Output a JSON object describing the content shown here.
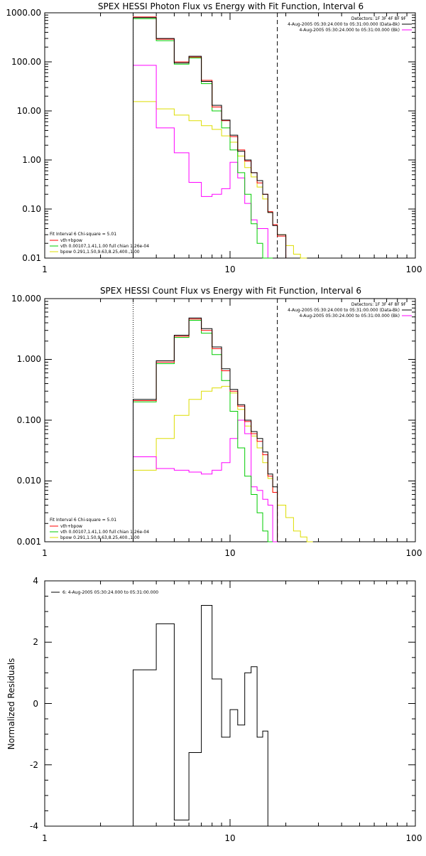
{
  "colors": {
    "data": "#000000",
    "total": "#ff0000",
    "vth": "#00cc00",
    "bpow": "#dddd00",
    "background": "#ff00ff",
    "axes": "#000000"
  },
  "chart_data": [
    {
      "id": "photon",
      "type": "line",
      "step": true,
      "title": "SPEX HESSI Photon Flux vs Energy with Fit Function, Interval 6",
      "xlabel": "",
      "ylabel": "",
      "xscale": "log",
      "yscale": "log",
      "xlim": [
        1,
        100
      ],
      "ylim": [
        0.01,
        1000
      ],
      "xtick_labels": [
        "1",
        "10",
        "100"
      ],
      "ytick_labels": [
        "1000.00",
        "100.00",
        "10.00",
        "1.00",
        "0.10",
        "0.01"
      ],
      "grid": false,
      "energy_range_markers": [
        3,
        18
      ],
      "bin_edges": [
        3,
        4,
        5,
        6,
        7,
        8,
        9,
        10,
        11,
        12,
        13,
        14,
        15,
        16,
        17,
        18,
        20,
        22,
        24,
        26
      ],
      "legend_topright": [
        "Detectors: 1F 3F 4F 8F 9F",
        "4-Aug-2005 05:30:24.000 to 05:31:00.000 (Data-Bk)",
        "4-Aug-2005 05:30:24.000 to 05:31:00.000 (Bk)"
      ],
      "legend_bottomleft": [
        "Fit Interval  6    Chi-square = 5.01",
        "vth+bpow",
        "vth 0.00107,1.41,1.00  full chian 1.26e-04",
        "bpow 0.291,1.50,9.63,8.25,400.,1.00"
      ],
      "series": [
        {
          "key": "data",
          "values": [
            800,
            300,
            95,
            130,
            40,
            13,
            6.5,
            3.2,
            1.5,
            1.0,
            0.55,
            0.38,
            0.2,
            0.085,
            0.046,
            0.03,
            null,
            null,
            null
          ]
        },
        {
          "key": "total",
          "values": [
            820,
            290,
            100,
            125,
            42,
            12,
            6.3,
            3.0,
            1.6,
            0.95,
            0.55,
            0.34,
            0.2,
            0.088,
            0.048,
            0.028,
            null,
            null,
            null
          ]
        },
        {
          "key": "vth",
          "values": [
            760,
            270,
            90,
            120,
            36,
            10,
            4.5,
            1.6,
            0.55,
            0.2,
            0.05,
            0.02,
            0.01,
            0.005,
            null,
            null,
            null,
            null,
            null
          ]
        },
        {
          "key": "bpow",
          "values": [
            15.5,
            11,
            8.2,
            6.3,
            5,
            4.2,
            3.1,
            2.3,
            1.2,
            0.7,
            0.45,
            0.28,
            0.16,
            0.085,
            0.048,
            0.03,
            0.018,
            0.012,
            0.008
          ]
        },
        {
          "key": "background",
          "values": [
            85,
            4.5,
            1.4,
            0.35,
            0.18,
            0.2,
            0.26,
            0.9,
            0.43,
            0.13,
            0.06,
            0.04,
            0.04,
            0.006,
            null,
            null,
            null,
            null,
            null
          ]
        }
      ]
    },
    {
      "id": "count",
      "type": "line",
      "step": true,
      "title": "SPEX HESSI Count Flux vs Energy with Fit Function, Interval 6",
      "xlabel": "",
      "ylabel": "",
      "xscale": "log",
      "yscale": "log",
      "xlim": [
        1,
        100
      ],
      "ylim": [
        0.001,
        10
      ],
      "xtick_labels": [
        "1",
        "10",
        "100"
      ],
      "ytick_labels": [
        "10.000",
        "1.000",
        "0.100",
        "0.010",
        "0.001"
      ],
      "grid": false,
      "energy_range_markers": [
        3,
        18
      ],
      "bin_edges": [
        3,
        4,
        5,
        6,
        7,
        8,
        9,
        10,
        11,
        12,
        13,
        14,
        15,
        16,
        17,
        18,
        20,
        22,
        24,
        26,
        28
      ],
      "legend_topright": [
        "Detectors: 1F 3F 4F 8F 9F",
        "4-Aug-2005 05:30:24.000 to 05:31:00.000 (Data-Bk)",
        "4-Aug-2005 05:30:24.000 to 05:31:00.000 (Bk)"
      ],
      "legend_bottomleft": [
        "Fit Interval  6    Chi-square = 5.01",
        "vth+bpow",
        "vth 0.00107,1.41,1.00  full chian 1.26e-04",
        "bpow 0.291,1.50,9.63,8.25,400.,1.00"
      ],
      "series": [
        {
          "key": "data",
          "values": [
            0.22,
            0.95,
            2.5,
            4.8,
            3.2,
            1.6,
            0.7,
            0.32,
            0.18,
            0.1,
            0.065,
            0.05,
            0.03,
            0.013,
            0.008,
            null,
            null,
            null,
            null,
            null
          ]
        },
        {
          "key": "total",
          "values": [
            0.21,
            0.9,
            2.4,
            4.6,
            3.0,
            1.5,
            0.65,
            0.3,
            0.17,
            0.095,
            0.06,
            0.045,
            0.027,
            0.012,
            0.0065,
            null,
            null,
            null,
            null,
            null
          ]
        },
        {
          "key": "vth",
          "values": [
            0.2,
            0.85,
            2.3,
            4.4,
            2.7,
            1.2,
            0.45,
            0.14,
            0.035,
            0.012,
            0.006,
            0.003,
            0.0015,
            0.001,
            null,
            null,
            null,
            null,
            null,
            null
          ]
        },
        {
          "key": "bpow",
          "values": [
            0.015,
            0.05,
            0.12,
            0.22,
            0.3,
            0.34,
            0.36,
            0.28,
            0.15,
            0.08,
            0.055,
            0.035,
            0.02,
            0.011,
            0.0065,
            0.004,
            0.0025,
            0.0015,
            0.0012,
            0.0009
          ]
        },
        {
          "key": "background",
          "values": [
            0.025,
            0.016,
            0.015,
            0.014,
            0.013,
            0.015,
            0.02,
            0.05,
            0.1,
            0.06,
            0.008,
            0.007,
            0.005,
            0.004,
            0.0008,
            null,
            null,
            null,
            null,
            null
          ]
        }
      ]
    },
    {
      "id": "residuals",
      "type": "line",
      "step": true,
      "title": "",
      "xlabel": "",
      "ylabel": "Normalized Residuals",
      "xscale": "log",
      "yscale": "linear",
      "xlim": [
        1,
        100
      ],
      "ylim": [
        -4,
        4
      ],
      "xtick_labels": [
        "1",
        "10",
        "100"
      ],
      "ytick_labels": [
        "4",
        "2",
        "0",
        "-2",
        "-4"
      ],
      "grid": false,
      "bin_edges": [
        3,
        4,
        5,
        6,
        7,
        8,
        9,
        10,
        11,
        12,
        13,
        14,
        15,
        16,
        17,
        18
      ],
      "legend": [
        "6:  4-Aug-2005 05:30:24.000 to 05:31:00.000"
      ],
      "series": [
        {
          "key": "data",
          "values": [
            1.1,
            2.6,
            -3.8,
            -1.6,
            3.2,
            0.8,
            -1.1,
            -0.2,
            -0.7,
            1.0,
            1.2,
            -1.1,
            -0.9,
            -4.0,
            -4.0
          ]
        }
      ]
    }
  ]
}
